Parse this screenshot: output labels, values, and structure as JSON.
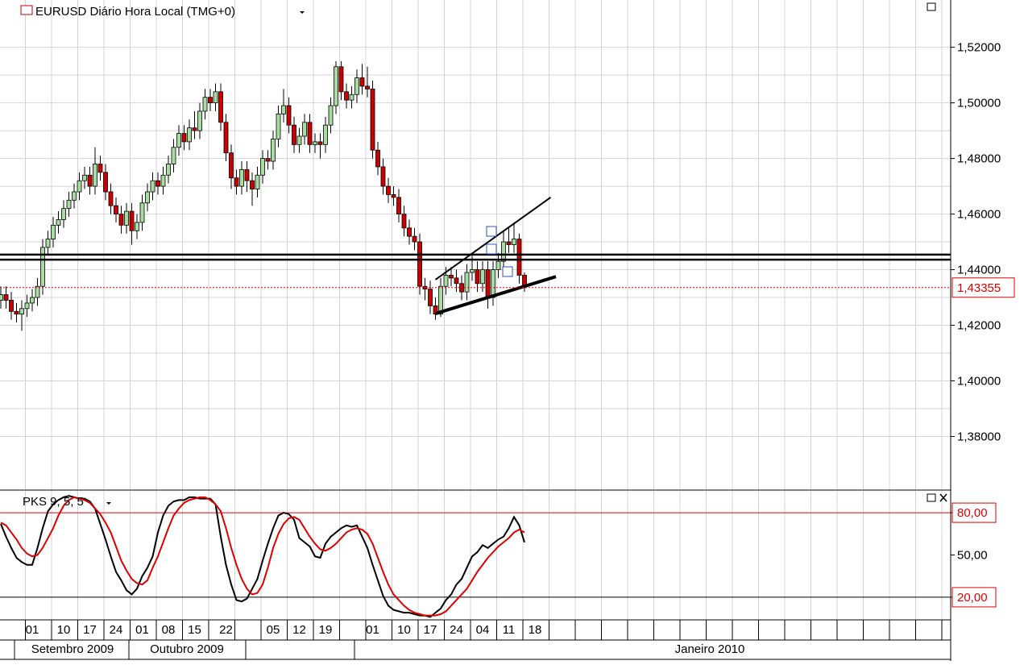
{
  "chart_data": [
    {
      "type": "candlestick",
      "title": "EURUSD Diário Hora Local (TMG+0)",
      "up_color": "#a8dca0",
      "down_color": "#cc0000",
      "grid": true,
      "ylim": [
        1.361,
        1.537
      ],
      "yticks": [
        {
          "value": 1.38,
          "label": "1,38000"
        },
        {
          "value": 1.4,
          "label": "1,40000"
        },
        {
          "value": 1.42,
          "label": "1,42000"
        },
        {
          "value": 1.44,
          "label": "1,44000"
        },
        {
          "value": 1.46,
          "label": "1,46000"
        },
        {
          "value": 1.48,
          "label": "1,48000"
        },
        {
          "value": 1.5,
          "label": "1,50000"
        },
        {
          "value": 1.52,
          "label": "1,52000"
        }
      ],
      "xticks": [
        {
          "value": 6,
          "label": "01"
        },
        {
          "value": 12,
          "label": "10"
        },
        {
          "value": 17,
          "label": "17"
        },
        {
          "value": 22,
          "label": "24"
        },
        {
          "value": 27,
          "label": "01"
        },
        {
          "value": 32,
          "label": "08"
        },
        {
          "value": 37,
          "label": "15"
        },
        {
          "value": 43,
          "label": "22"
        },
        {
          "value": 52,
          "label": "05"
        },
        {
          "value": 57,
          "label": "12"
        },
        {
          "value": 62,
          "label": "19"
        },
        {
          "value": 71,
          "label": "01"
        },
        {
          "value": 77,
          "label": "10"
        },
        {
          "value": 82,
          "label": "17"
        },
        {
          "value": 87,
          "label": "24"
        },
        {
          "value": 92,
          "label": "04"
        },
        {
          "value": 97,
          "label": "11"
        },
        {
          "value": 102,
          "label": "18"
        }
      ],
      "months": [
        "Setembro 2009",
        "Outubro 2009",
        "Janeiro 2010"
      ],
      "open": [
        1.429,
        1.431,
        1.429,
        1.425,
        1.424,
        1.426,
        1.428,
        1.43,
        1.434,
        1.448,
        1.451,
        1.456,
        1.458,
        1.462,
        1.465,
        1.468,
        1.472,
        1.474,
        1.47,
        1.478,
        1.475,
        1.468,
        1.463,
        1.46,
        1.456,
        1.461,
        1.454,
        1.457,
        1.464,
        1.468,
        1.472,
        1.47,
        1.474,
        1.478,
        1.484,
        1.489,
        1.486,
        1.491,
        1.49,
        1.497,
        1.502,
        1.5,
        1.504,
        1.493,
        1.482,
        1.473,
        1.47,
        1.476,
        1.472,
        1.469,
        1.474,
        1.48,
        1.479,
        1.487,
        1.496,
        1.499,
        1.492,
        1.485,
        1.488,
        1.493,
        1.485,
        1.486,
        1.485,
        1.492,
        1.499,
        1.513,
        1.504,
        1.501,
        1.503,
        1.509,
        1.506,
        1.505,
        1.483,
        1.477,
        1.47,
        1.467,
        1.466,
        1.46,
        1.455,
        1.452,
        1.45,
        1.434,
        1.433,
        1.427,
        1.424,
        1.434,
        1.438,
        1.437,
        1.435,
        1.432,
        1.439,
        1.44,
        1.435,
        1.44,
        1.43,
        1.44,
        1.443,
        1.45,
        1.449,
        1.451,
        1.438
      ],
      "high": [
        1.434,
        1.434,
        1.432,
        1.428,
        1.429,
        1.431,
        1.433,
        1.437,
        1.451,
        1.454,
        1.459,
        1.461,
        1.465,
        1.468,
        1.471,
        1.475,
        1.477,
        1.477,
        1.484,
        1.481,
        1.478,
        1.471,
        1.466,
        1.463,
        1.464,
        1.464,
        1.46,
        1.467,
        1.471,
        1.475,
        1.475,
        1.477,
        1.481,
        1.487,
        1.492,
        1.492,
        1.494,
        1.497,
        1.5,
        1.505,
        1.505,
        1.507,
        1.507,
        1.496,
        1.485,
        1.476,
        1.479,
        1.479,
        1.475,
        1.477,
        1.483,
        1.483,
        1.49,
        1.499,
        1.505,
        1.502,
        1.495,
        1.491,
        1.496,
        1.496,
        1.489,
        1.489,
        1.495,
        1.502,
        1.515,
        1.515,
        1.507,
        1.506,
        1.512,
        1.514,
        1.513,
        1.508,
        1.486,
        1.48,
        1.473,
        1.47,
        1.469,
        1.463,
        1.458,
        1.455,
        1.453,
        1.437,
        1.436,
        1.43,
        1.437,
        1.441,
        1.441,
        1.44,
        1.438,
        1.442,
        1.445,
        1.443,
        1.443,
        1.443,
        1.443,
        1.446,
        1.454,
        1.455,
        1.457,
        1.453,
        1.439
      ],
      "low": [
        1.426,
        1.426,
        1.422,
        1.421,
        1.418,
        1.423,
        1.425,
        1.427,
        1.431,
        1.445,
        1.448,
        1.453,
        1.455,
        1.459,
        1.462,
        1.465,
        1.469,
        1.467,
        1.467,
        1.472,
        1.465,
        1.46,
        1.457,
        1.453,
        1.453,
        1.449,
        1.451,
        1.454,
        1.461,
        1.465,
        1.467,
        1.467,
        1.471,
        1.475,
        1.481,
        1.483,
        1.483,
        1.487,
        1.487,
        1.494,
        1.497,
        1.497,
        1.49,
        1.479,
        1.469,
        1.467,
        1.467,
        1.468,
        1.463,
        1.466,
        1.471,
        1.476,
        1.476,
        1.484,
        1.493,
        1.489,
        1.482,
        1.482,
        1.485,
        1.482,
        1.482,
        1.48,
        1.482,
        1.489,
        1.496,
        1.501,
        1.498,
        1.498,
        1.5,
        1.503,
        1.502,
        1.48,
        1.474,
        1.467,
        1.464,
        1.463,
        1.457,
        1.452,
        1.449,
        1.447,
        1.431,
        1.429,
        1.424,
        1.422,
        1.423,
        1.431,
        1.434,
        1.432,
        1.429,
        1.429,
        1.436,
        1.432,
        1.432,
        1.426,
        1.427,
        1.437,
        1.44,
        1.446,
        1.446,
        1.435,
        1.432
      ],
      "close": [
        1.431,
        1.429,
        1.425,
        1.424,
        1.426,
        1.428,
        1.43,
        1.434,
        1.448,
        1.451,
        1.456,
        1.458,
        1.462,
        1.465,
        1.468,
        1.472,
        1.474,
        1.47,
        1.478,
        1.475,
        1.468,
        1.463,
        1.46,
        1.456,
        1.461,
        1.454,
        1.457,
        1.464,
        1.468,
        1.472,
        1.47,
        1.474,
        1.478,
        1.484,
        1.489,
        1.486,
        1.491,
        1.49,
        1.497,
        1.502,
        1.5,
        1.504,
        1.493,
        1.482,
        1.473,
        1.47,
        1.476,
        1.472,
        1.469,
        1.474,
        1.48,
        1.479,
        1.487,
        1.496,
        1.499,
        1.492,
        1.485,
        1.488,
        1.493,
        1.485,
        1.486,
        1.485,
        1.492,
        1.499,
        1.513,
        1.504,
        1.501,
        1.503,
        1.509,
        1.506,
        1.505,
        1.483,
        1.477,
        1.47,
        1.467,
        1.466,
        1.46,
        1.455,
        1.452,
        1.45,
        1.434,
        1.433,
        1.427,
        1.424,
        1.434,
        1.438,
        1.437,
        1.435,
        1.432,
        1.439,
        1.44,
        1.435,
        1.44,
        1.43,
        1.44,
        1.443,
        1.45,
        1.449,
        1.451,
        1.438,
        1.43355
      ],
      "hlines": [
        1.4454,
        1.4436
      ],
      "trendlines": [
        {
          "x": [
            83,
            105
          ],
          "y": [
            1.4364,
            1.466
          ],
          "width": 2
        },
        {
          "x": [
            83,
            106
          ],
          "y": [
            1.4242,
            1.4375
          ],
          "width": 4
        }
      ],
      "last_price": {
        "value": 1.43355,
        "label": "1,43355"
      }
    },
    {
      "type": "line",
      "title": "PKS 9, 5, 5",
      "ylim": [
        4.5,
        95.5
      ],
      "yticks": [
        {
          "value": 20,
          "label": "20,00"
        },
        {
          "value": 50,
          "label": "50,00"
        },
        {
          "value": 80,
          "label": "80,00"
        }
      ],
      "hlines": [
        {
          "value": 80,
          "color": "#e00000"
        },
        {
          "value": 20,
          "color": "#000000"
        }
      ],
      "boxed_tick_color": "#e00000",
      "series": [
        {
          "color": "#000000",
          "values": [
            72,
            63,
            55,
            48,
            45,
            43,
            43,
            55,
            69,
            81,
            86,
            89,
            91,
            92,
            91,
            90,
            90,
            88,
            83,
            72,
            61,
            49,
            38,
            32,
            25,
            22,
            26,
            35,
            41,
            49,
            66,
            78,
            85,
            88,
            89,
            89,
            91,
            91,
            90,
            90,
            90,
            86,
            63,
            43,
            29,
            18,
            17,
            19,
            26,
            33,
            46,
            58,
            69,
            78,
            80,
            79,
            75,
            62,
            59,
            56,
            49,
            48,
            58,
            63,
            66,
            69,
            71,
            70,
            71,
            63,
            55,
            43,
            32,
            21,
            14,
            11,
            10,
            9,
            9,
            8,
            7,
            7,
            6,
            9,
            12,
            18,
            22,
            29,
            33,
            41,
            49,
            52,
            57,
            55,
            58,
            61,
            63,
            69,
            77,
            71,
            59
          ]
        },
        {
          "color": "#e00000",
          "values": [
            73,
            71,
            66,
            61,
            55,
            51,
            49,
            50,
            55,
            62,
            69,
            78,
            85,
            89,
            91,
            90,
            89,
            87,
            83,
            79,
            73,
            66,
            56,
            46,
            39,
            33,
            30,
            29,
            32,
            41,
            49,
            59,
            69,
            78,
            83,
            87,
            89,
            90,
            91,
            91,
            89,
            86,
            81,
            69,
            55,
            43,
            33,
            26,
            22,
            23,
            29,
            41,
            55,
            65,
            72,
            76,
            77,
            75,
            69,
            63,
            58,
            54,
            53,
            55,
            58,
            62,
            66,
            68,
            69,
            68,
            65,
            58,
            48,
            38,
            29,
            22,
            18,
            14,
            11,
            9,
            8,
            7,
            7,
            7,
            8,
            10,
            14,
            18,
            22,
            26,
            32,
            38,
            43,
            48,
            52,
            56,
            59,
            62,
            66,
            68,
            66
          ]
        }
      ]
    }
  ]
}
